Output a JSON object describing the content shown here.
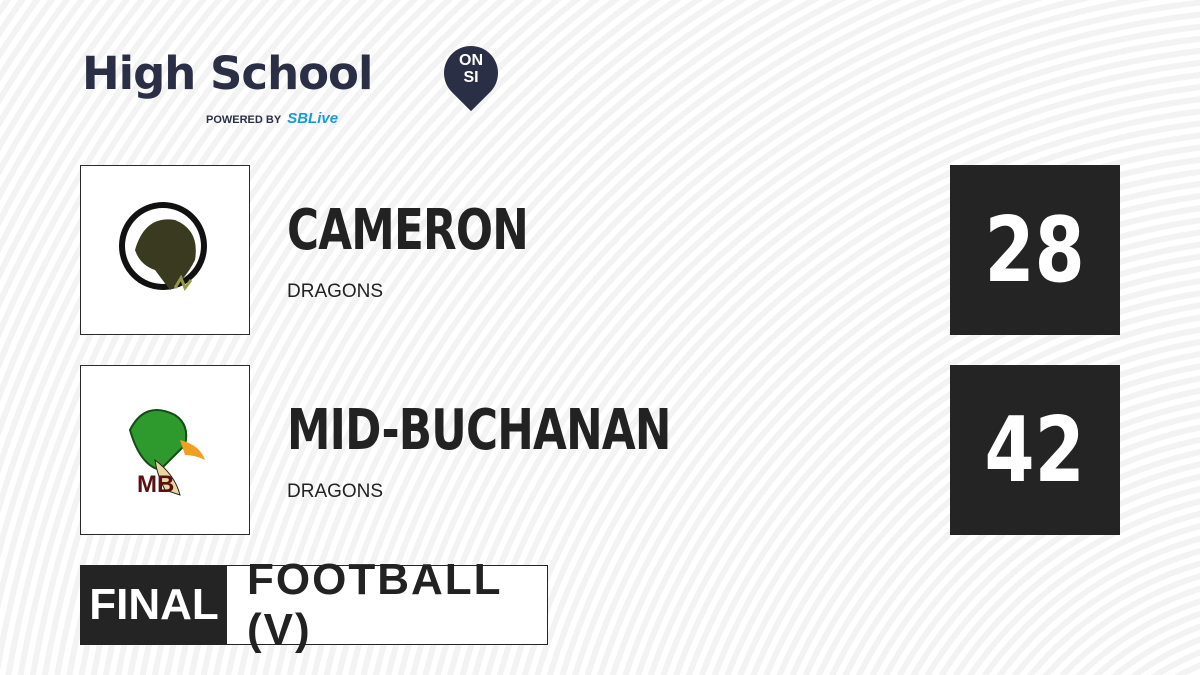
{
  "brand": {
    "title": "High School",
    "badge_top": "ON",
    "badge_bottom": "SI",
    "powered_by": "POWERED BY",
    "partner_prefix": "S",
    "partner": "SBLive"
  },
  "teams": [
    {
      "name": "CAMERON",
      "mascot": "DRAGONS",
      "score": "28",
      "logo_color": "#6b6b2a"
    },
    {
      "name": "MID-BUCHANAN",
      "mascot": "DRAGONS",
      "score": "42",
      "logo_color": "#2e9a2e"
    }
  ],
  "status": "FINAL",
  "sport": "FOOTBALL (V)"
}
